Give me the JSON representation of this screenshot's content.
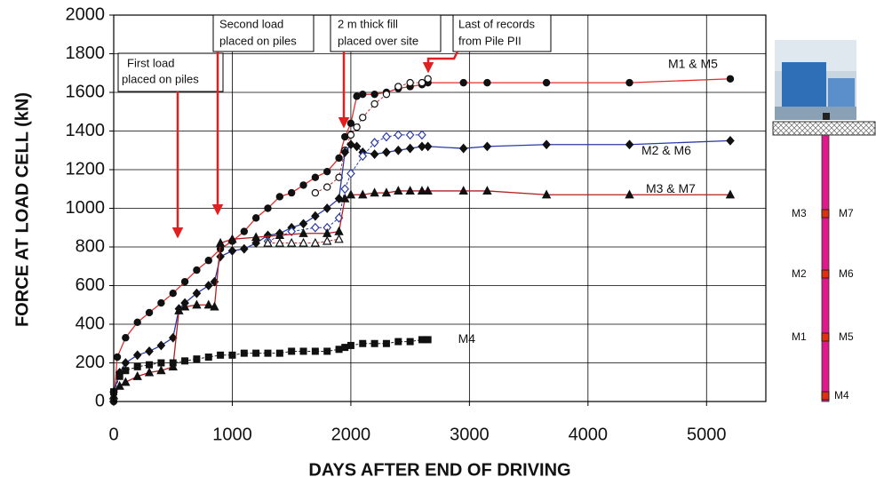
{
  "chart_data": {
    "type": "line",
    "ylabel": "FORCE AT LOAD CELL  (kN)",
    "xlabel": "DAYS AFTER END OF DRIVING",
    "xlim": [
      0,
      5500
    ],
    "xticks": [
      0,
      1000,
      2000,
      3000,
      4000,
      5000
    ],
    "ylim": [
      0,
      2000
    ],
    "yticks": [
      0,
      200,
      400,
      600,
      800,
      1000,
      1200,
      1400,
      1600,
      1800,
      2000
    ],
    "grid": true,
    "series": [
      {
        "name": "M1 & M5",
        "color": "#e03030",
        "marker": "circle",
        "filled": true,
        "dashed": false,
        "x": [
          0,
          30,
          100,
          200,
          300,
          400,
          500,
          600,
          700,
          800,
          900,
          1000,
          1100,
          1200,
          1300,
          1400,
          1500,
          1600,
          1700,
          1800,
          1900,
          1950,
          2000,
          2050,
          2100,
          2200,
          2300,
          2400,
          2500,
          2600,
          2650,
          2950,
          3150,
          3650,
          4350,
          5200
        ],
        "values": [
          0,
          230,
          330,
          410,
          460,
          510,
          560,
          620,
          680,
          730,
          790,
          830,
          880,
          950,
          1000,
          1060,
          1080,
          1120,
          1160,
          1190,
          1260,
          1370,
          1440,
          1580,
          1590,
          1590,
          1600,
          1620,
          1630,
          1640,
          1650,
          1650,
          1650,
          1650,
          1650,
          1670
        ]
      },
      {
        "color": "#c03030",
        "marker": "circle",
        "filled": false,
        "dashed": true,
        "x": [
          1700,
          1800,
          1900,
          1950,
          2000,
          2050,
          2100,
          2200,
          2300,
          2400,
          2500,
          2600,
          2650
        ],
        "values": [
          1080,
          1110,
          1160,
          1300,
          1380,
          1420,
          1470,
          1540,
          1590,
          1630,
          1650,
          1650,
          1670
        ]
      },
      {
        "name": "M2 & M6",
        "color": "#2a3aa8",
        "marker": "diamond",
        "filled": true,
        "dashed": false,
        "x": [
          0,
          50,
          100,
          200,
          300,
          400,
          500,
          550,
          600,
          700,
          800,
          850,
          900,
          1000,
          1100,
          1200,
          1300,
          1400,
          1500,
          1600,
          1700,
          1800,
          1900,
          1950,
          2000,
          2050,
          2100,
          2200,
          2300,
          2400,
          2500,
          2600,
          2650,
          2950,
          3150,
          3650,
          4350,
          5200
        ],
        "values": [
          50,
          150,
          200,
          240,
          260,
          290,
          330,
          480,
          510,
          560,
          600,
          620,
          750,
          780,
          790,
          820,
          860,
          870,
          900,
          920,
          960,
          1000,
          1050,
          1290,
          1330,
          1320,
          1290,
          1280,
          1290,
          1300,
          1310,
          1320,
          1320,
          1310,
          1320,
          1330,
          1330,
          1350
        ]
      },
      {
        "color": "#2a3aa8",
        "marker": "diamond",
        "filled": false,
        "dashed": true,
        "x": [
          1300,
          1500,
          1700,
          1800,
          1900,
          1950,
          2000,
          2100,
          2200,
          2300,
          2400,
          2500,
          2600
        ],
        "values": [
          830,
          880,
          900,
          900,
          950,
          1100,
          1180,
          1270,
          1340,
          1370,
          1380,
          1380,
          1380
        ]
      },
      {
        "name": "M3 & M7",
        "color": "#b02020",
        "marker": "triangle",
        "filled": true,
        "dashed": false,
        "x": [
          0,
          50,
          100,
          200,
          300,
          400,
          500,
          550,
          600,
          700,
          800,
          850,
          900,
          1000,
          1200,
          1400,
          1600,
          1800,
          1900,
          1950,
          2000,
          2100,
          2200,
          2300,
          2400,
          2500,
          2600,
          2650,
          2950,
          3150,
          3650,
          4350,
          5200
        ],
        "values": [
          30,
          80,
          100,
          130,
          150,
          160,
          180,
          470,
          490,
          500,
          500,
          490,
          820,
          840,
          850,
          860,
          870,
          870,
          880,
          1050,
          1070,
          1070,
          1080,
          1080,
          1090,
          1090,
          1090,
          1090,
          1090,
          1090,
          1070,
          1070,
          1070
        ]
      },
      {
        "color": "#b02020",
        "marker": "triangle",
        "filled": false,
        "dashed": true,
        "x": [
          1300,
          1400,
          1500,
          1600,
          1700,
          1800,
          1900
        ],
        "values": [
          820,
          820,
          820,
          820,
          820,
          830,
          840
        ]
      },
      {
        "name": "M4",
        "color": "#222222",
        "marker": "square",
        "filled": true,
        "dashed": true,
        "x": [
          0,
          50,
          100,
          200,
          300,
          400,
          500,
          600,
          700,
          800,
          900,
          1000,
          1100,
          1200,
          1300,
          1400,
          1500,
          1600,
          1700,
          1800,
          1900,
          1950,
          2000,
          2100,
          2200,
          2300,
          2400,
          2500,
          2600,
          2650
        ],
        "values": [
          50,
          130,
          160,
          180,
          190,
          200,
          200,
          210,
          220,
          230,
          240,
          240,
          250,
          250,
          250,
          250,
          260,
          260,
          260,
          260,
          270,
          280,
          290,
          300,
          300,
          300,
          310,
          310,
          320,
          320
        ]
      }
    ],
    "annotations": [
      {
        "lines": [
          "First load",
          "placed on piles"
        ]
      },
      {
        "lines": [
          "Second load",
          "placed on piles"
        ]
      },
      {
        "lines": [
          "2 m thick fill",
          "placed over site"
        ]
      },
      {
        "lines": [
          "Last of records",
          "from Pile PII"
        ]
      }
    ],
    "pile_diagram": {
      "labels": [
        "M3",
        "M7",
        "M2",
        "M6",
        "M1",
        "M5",
        "M4"
      ]
    }
  }
}
